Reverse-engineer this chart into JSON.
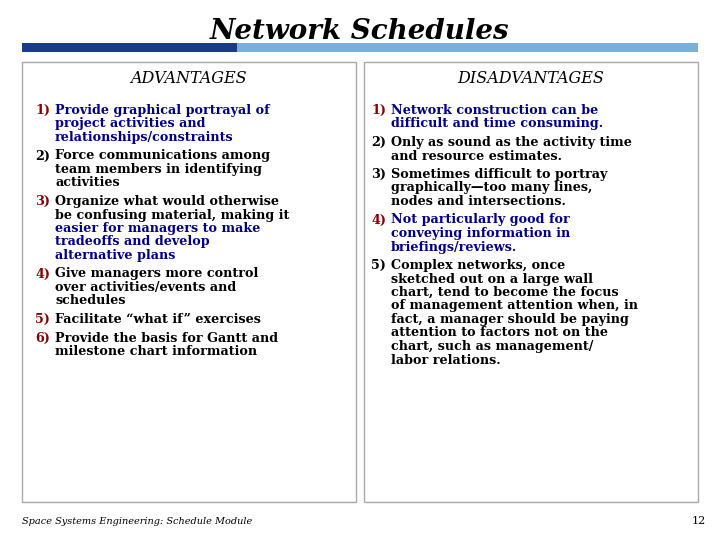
{
  "title": "Network Schedules",
  "bg_color": "#ffffff",
  "adv_header": "ADVANTAGES",
  "dis_header": "DISADVANTAGES",
  "adv_items": [
    {
      "num": "1)",
      "num_color": "#8B0000",
      "lines": [
        "Provide graphical portrayal of",
        "project activities and",
        "relationships/constraints"
      ],
      "text_color": "#00008B"
    },
    {
      "num": "2)",
      "num_color": "#000000",
      "lines": [
        "Force communications among",
        "team members in identifying",
        "activities"
      ],
      "text_color": "#000000"
    },
    {
      "num": "3)",
      "num_color": "#8B0000",
      "lines": [
        "Organize what would otherwise",
        "be confusing material, making it",
        "easier for managers to make",
        "tradeoffs and develop",
        "alternative plans"
      ],
      "text_color_split": true,
      "line_colors": [
        "#000000",
        "#000000",
        "#00008B",
        "#00008B",
        "#00008B"
      ]
    },
    {
      "num": "4)",
      "num_color": "#8B0000",
      "lines": [
        "Give managers more control",
        "over activities/events and",
        "schedules"
      ],
      "text_color": "#000000"
    },
    {
      "num": "5)",
      "num_color": "#8B0000",
      "lines": [
        "Facilitate “what if” exercises"
      ],
      "text_color": "#000000"
    },
    {
      "num": "6)",
      "num_color": "#8B0000",
      "lines": [
        "Provide the basis for Gantt and",
        "milestone chart information"
      ],
      "text_color": "#000000"
    }
  ],
  "dis_items": [
    {
      "num": "1)",
      "num_color": "#8B0000",
      "lines": [
        "Network construction can be",
        "difficult and time consuming."
      ],
      "text_color": "#00008B"
    },
    {
      "num": "2)",
      "num_color": "#000000",
      "lines": [
        "Only as sound as the activity time",
        "and resource estimates."
      ],
      "text_color": "#000000"
    },
    {
      "num": "3)",
      "num_color": "#000000",
      "lines": [
        "Sometimes difficult to portray",
        "graphically—too many lines,",
        "nodes and intersections."
      ],
      "text_color": "#000000"
    },
    {
      "num": "4)",
      "num_color": "#8B0000",
      "lines": [
        "Not particularly good for",
        "conveying information in",
        "briefings/reviews."
      ],
      "text_color": "#00008B"
    },
    {
      "num": "5)",
      "num_color": "#000000",
      "lines": [
        "Complex networks, once",
        "sketched out on a large wall",
        "chart, tend to become the focus",
        "of management attention when, in",
        "fact, a manager should be paying",
        "attention to factors not on the",
        "chart, such as management/",
        "labor relations."
      ],
      "text_color": "#000000"
    }
  ],
  "footer_text": "Space Systems Engineering: Schedule Module",
  "page_number": "12"
}
